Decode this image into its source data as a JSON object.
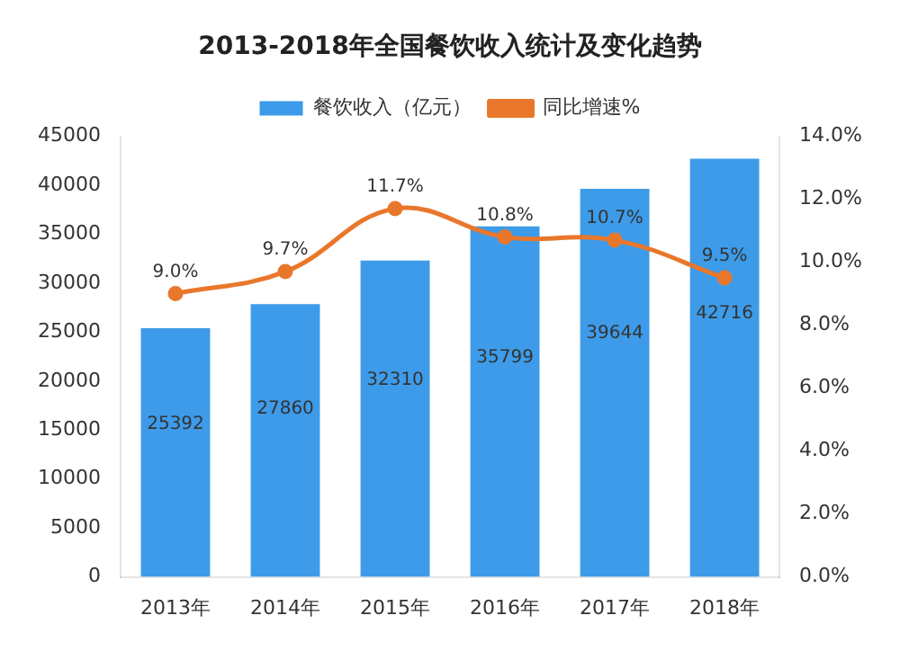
{
  "chart_data": {
    "type": "bar",
    "title": "2013-2018年全国餐饮收入统计及变化趋势",
    "categories": [
      "2013年",
      "2014年",
      "2015年",
      "2016年",
      "2017年",
      "2018年"
    ],
    "series": [
      {
        "name": "餐饮收入（亿元）",
        "color": "#3d9be9",
        "values": [
          25392,
          27860,
          32310,
          35799,
          39644,
          42716
        ],
        "value_labels": [
          "25392",
          "27860",
          "32310",
          "35799",
          "39644",
          "42716"
        ]
      },
      {
        "name": "同比增速%",
        "type": "line",
        "axis": "y2",
        "color": "#e9772b",
        "marker": "circle",
        "values": [
          9.0,
          9.7,
          11.7,
          10.8,
          10.7,
          9.5
        ],
        "value_labels": [
          "9.0%",
          "9.7%",
          "11.7%",
          "10.8%",
          "10.7%",
          "9.5%"
        ]
      }
    ],
    "ylim": [
      0,
      45000
    ],
    "yticks": [
      0,
      5000,
      10000,
      15000,
      20000,
      25000,
      30000,
      35000,
      40000,
      45000
    ],
    "y2lim": [
      0,
      14
    ],
    "y2ticks": [
      {
        "value": 0,
        "label": "0.0%"
      },
      {
        "value": 2,
        "label": "2.0%"
      },
      {
        "value": 4,
        "label": "4.0%"
      },
      {
        "value": 6,
        "label": "6.0%"
      },
      {
        "value": 8,
        "label": "8.0%"
      },
      {
        "value": 10,
        "label": "10.0%"
      },
      {
        "value": 12,
        "label": "12.0%"
      },
      {
        "value": 14,
        "label": "14.0%"
      }
    ],
    "grid": false,
    "legend": "top"
  }
}
